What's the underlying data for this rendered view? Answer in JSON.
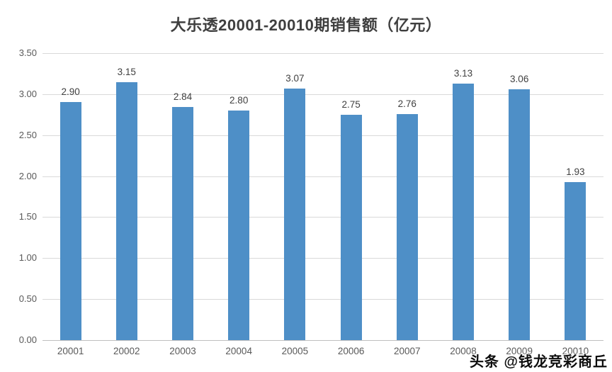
{
  "watermark": "头条 @钱龙竞彩商丘",
  "chart_data": {
    "type": "bar",
    "title": "大乐透20001-20010期销售额（亿元）",
    "categories": [
      "20001",
      "20002",
      "20003",
      "20004",
      "20005",
      "20006",
      "20007",
      "20008",
      "20009",
      "20010"
    ],
    "values": [
      2.9,
      3.15,
      2.84,
      2.8,
      3.07,
      2.75,
      2.76,
      3.13,
      3.06,
      1.93
    ],
    "value_labels": [
      "2.90",
      "3.15",
      "2.84",
      "2.80",
      "3.07",
      "2.75",
      "2.76",
      "3.13",
      "3.06",
      "1.93"
    ],
    "xlabel": "",
    "ylabel": "",
    "ylim": [
      0,
      3.5
    ],
    "yticks": [
      "0.00",
      "0.50",
      "1.00",
      "1.50",
      "2.00",
      "2.50",
      "3.00",
      "3.50"
    ],
    "grid": true,
    "legend": false,
    "bar_color": "#4e8fc7",
    "gridline_color": "#d9d9d9",
    "axis_text_color": "#595959",
    "title_color": "#3f3f3f"
  }
}
